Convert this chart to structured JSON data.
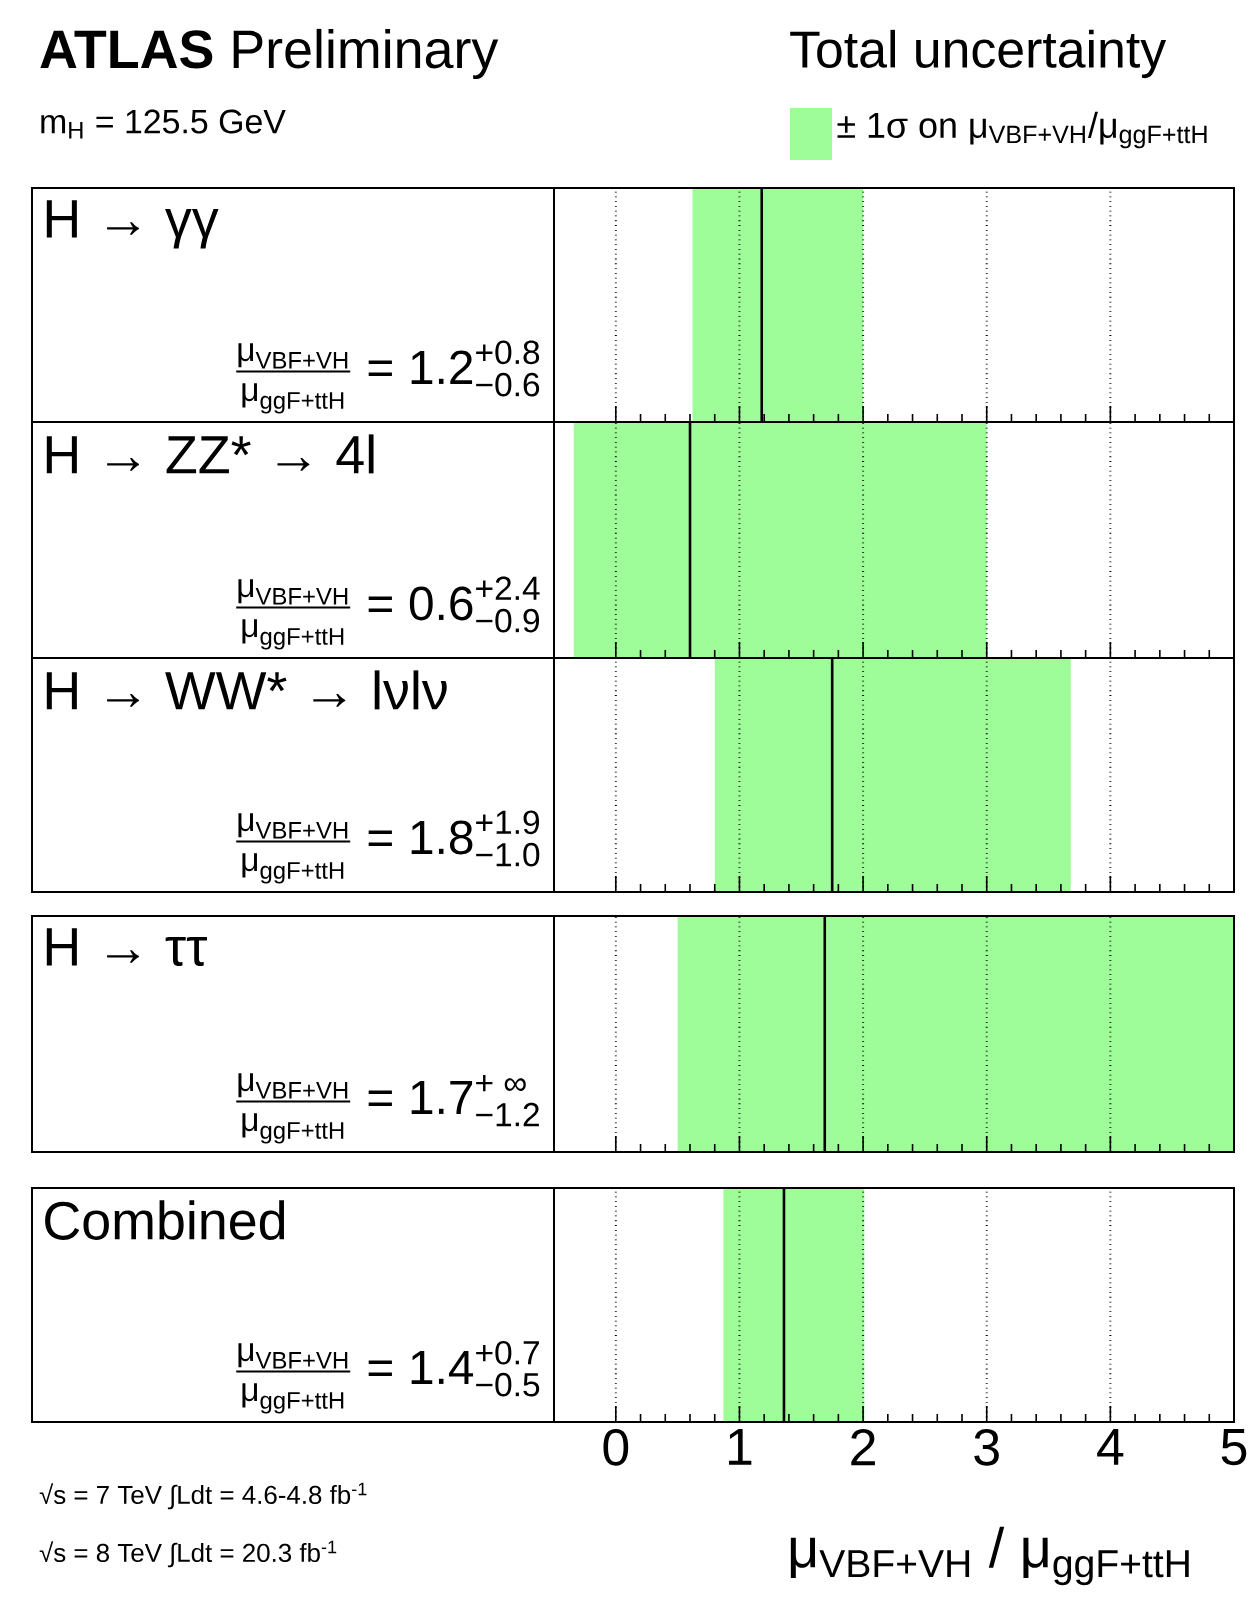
{
  "chart_data": [
    {
      "type": "bar",
      "orientation": "horizontal",
      "title": "**ATLAS** Preliminary",
      "legend_title": "Total uncertainty",
      "legend": "top right",
      "categories": [
        "H → γγ"
      ],
      "series": [
        {
          "name": "± 1σ on μ$_{VBF+VH}$/μ$_{ggF+ttH}$",
          "color": "#9efd98",
          "base": [
            0.62
          ],
          "values": [
            1.38
          ]
        }
      ],
      "ref_lines": [
        {
          "axis": "x",
          "value": 1.18,
          "color": "#000000"
        }
      ],
      "annotations": [
        "\\frac{\\text{μ}_{\\text{VBF+VH}}}{\\text{μ}_{\\text{ggF+ttH}}} \\mathrel{\\text{=}} \\text{1.2}^{\\text{+0.8}}_{\\text{−0.6}}",
        "m$_{H}$ = 125.5 GeV"
      ],
      "xlim": [
        -0.5,
        5
      ],
      "xticks": [
        0,
        1,
        2,
        3,
        4,
        5
      ],
      "grid": "x",
      "tick_labels": false
    },
    {
      "type": "bar",
      "orientation": "horizontal",
      "categories": [
        "H → ZZ* → 4l"
      ],
      "series": [
        {
          "color": "#9efd98",
          "base": [
            -0.34
          ],
          "values": [
            3.34
          ]
        }
      ],
      "ref_lines": [
        {
          "axis": "x",
          "value": 0.6,
          "color": "#000000"
        }
      ],
      "annotations": [
        "\\frac{\\text{μ}_{\\text{VBF+VH}}}{\\text{μ}_{\\text{ggF+ttH}}} \\mathrel{\\text{=}} \\text{0.6}^{\\text{+2.4}}_{\\text{−0.9}}"
      ],
      "xlim": [
        -0.5,
        5
      ],
      "xticks": [
        0,
        1,
        2,
        3,
        4,
        5
      ],
      "grid": "x",
      "tick_labels": false
    },
    {
      "type": "bar",
      "orientation": "horizontal",
      "categories": [
        "H → WW* → lνlν"
      ],
      "series": [
        {
          "color": "#9efd98",
          "base": [
            0.8
          ],
          "values": [
            2.88
          ]
        }
      ],
      "ref_lines": [
        {
          "axis": "x",
          "value": 1.75,
          "color": "#000000"
        }
      ],
      "annotations": [
        "\\frac{\\text{μ}_{\\text{VBF+VH}}}{\\text{μ}_{\\text{ggF+ttH}}} \\mathrel{\\text{=}} \\text{1.8}^{\\text{+1.9}}_{\\text{−1.0}}"
      ],
      "xlim": [
        -0.5,
        5
      ],
      "xticks": [
        0,
        1,
        2,
        3,
        4,
        5
      ],
      "grid": "x",
      "tick_labels": false
    },
    {
      "type": "bar",
      "orientation": "horizontal",
      "categories": [
        "H → ττ"
      ],
      "series": [
        {
          "color": "#9efd98",
          "base": [
            0.5
          ],
          "values": [
            4.5
          ]
        }
      ],
      "ref_lines": [
        {
          "axis": "x",
          "value": 1.69,
          "color": "#000000"
        }
      ],
      "annotations": [
        "\\frac{\\text{μ}_{\\text{VBF+VH}}}{\\text{μ}_{\\text{ggF+ttH}}} \\mathrel{\\text{=}} \\text{1.7}^{\\text{+ ∞}}_{\\text{−1.2}}"
      ],
      "xlim": [
        -0.5,
        5
      ],
      "xticks": [
        0,
        1,
        2,
        3,
        4,
        5
      ],
      "grid": "x",
      "tick_labels": false
    },
    {
      "type": "bar",
      "orientation": "horizontal",
      "categories": [
        "Combined"
      ],
      "xlabel": "μ$_{VBF+VH}$ / μ$_{ggF+ttH}$",
      "series": [
        {
          "color": "#9efd98",
          "base": [
            0.87
          ],
          "values": [
            1.14
          ]
        }
      ],
      "ref_lines": [
        {
          "axis": "x",
          "value": 1.36,
          "color": "#000000"
        }
      ],
      "annotations": [
        "\\frac{\\text{μ}_{\\text{VBF+VH}}}{\\text{μ}_{\\text{ggF+ttH}}} \\mathrel{\\text{=}} \\text{1.4}^{\\text{+0.7}}_{\\text{−0.5}}",
        "√s = 7 TeV ∫Ldt = 4.6-4.8 fb$^{-1}$",
        "√s = 8 TeV ∫Ldt = 20.3 fb$^{-1}$"
      ],
      "xlim": [
        -0.5,
        5
      ],
      "xticks": [
        0,
        1,
        2,
        3,
        4,
        5
      ],
      "grid": "x",
      "tick_labels": "x"
    }
  ]
}
